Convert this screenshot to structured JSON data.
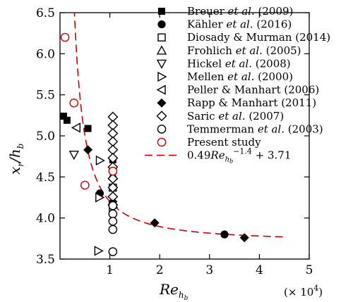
{
  "chart_data": {
    "type": "scatter",
    "xlabel": "Re",
    "xlabel_sub": "h",
    "xlabel_subsub": "b",
    "ylabel": "x",
    "ylabel_sub": "r",
    "ylabel_div": "/h",
    "ylabel_div_sub": "b",
    "x_scale_note": "(× 10",
    "x_scale_exp": "4",
    "x_scale_close": ")",
    "xlim": [
      0,
      5
    ],
    "ylim": [
      3.5,
      6.5
    ],
    "xticks": [
      1,
      2,
      3,
      4,
      5
    ],
    "xtick_labels": [
      "1",
      "2",
      "3",
      "4",
      "5"
    ],
    "yticks": [
      3.5,
      4.0,
      4.5,
      5.0,
      5.5,
      6.0,
      6.5
    ],
    "ytick_labels": [
      "3.5",
      "4.0",
      "4.5",
      "5.0",
      "5.5",
      "6.0",
      "6.5"
    ],
    "grid": false,
    "legend_position": "top-right",
    "series": [
      {
        "name": "Breuer et al. (2009)",
        "name_parts": [
          "Breuer ",
          "et al",
          ". (2009)"
        ],
        "marker": "square-filled",
        "color": "#000000",
        "points": [
          [
            0.07,
            5.24
          ],
          [
            0.14,
            5.19
          ],
          [
            0.56,
            5.09
          ],
          [
            1.06,
            4.71
          ]
        ]
      },
      {
        "name": "Kähler et al. (2016)",
        "name_parts": [
          "Kähler ",
          "et al",
          ". (2016)"
        ],
        "marker": "circle-filled",
        "color": "#000000",
        "points": [
          [
            0.8,
            4.3
          ],
          [
            1.06,
            4.61
          ],
          [
            3.3,
            3.8
          ]
        ]
      },
      {
        "name": "Diosady & Murman (2014)",
        "name_parts": [
          "Diosady & Murman (2014)",
          "",
          ""
        ],
        "marker": "square-open",
        "color": "#000000",
        "points": [
          [
            1.06,
            4.37
          ]
        ]
      },
      {
        "name": "Frohlich et al. (2005)",
        "name_parts": [
          "Frohlich ",
          "et al",
          ". (2005)"
        ],
        "marker": "triangle-up-open",
        "color": "#000000",
        "points": [
          [
            1.06,
            4.52
          ]
        ]
      },
      {
        "name": "Hickel et al. (2008)",
        "name_parts": [
          "Hickel ",
          "et al",
          ". (2008)"
        ],
        "marker": "triangle-down-open",
        "color": "#000000",
        "points": [
          [
            0.28,
            4.77
          ]
        ]
      },
      {
        "name": "Mellen et al. (2000)",
        "name_parts": [
          "Mellen ",
          "et al",
          ". (2000)"
        ],
        "marker": "triangle-right-open",
        "color": "#000000",
        "points": [
          [
            0.77,
            3.6
          ],
          [
            0.79,
            4.25
          ],
          [
            0.8,
            4.7
          ],
          [
            1.06,
            4.13
          ]
        ]
      },
      {
        "name": "Peller & Manhart (2006)",
        "name_parts": [
          "Peller & Manhart (2006)",
          "",
          ""
        ],
        "marker": "triangle-left-open",
        "color": "#000000",
        "points": [
          [
            0.33,
            5.1
          ]
        ]
      },
      {
        "name": "Rapp & Manhart (2011)",
        "name_parts": [
          "Rapp & Manhart (2011)",
          "",
          ""
        ],
        "marker": "diamond-filled",
        "color": "#000000",
        "points": [
          [
            0.56,
            4.83
          ],
          [
            1.06,
            4.2
          ],
          [
            1.9,
            3.94
          ],
          [
            3.7,
            3.76
          ]
        ]
      },
      {
        "name": "Saric et al. (2007)",
        "name_parts": [
          "Saric ",
          "et al",
          ". (2007)"
        ],
        "marker": "diamond-open",
        "color": "#000000",
        "points": [
          [
            1.06,
            5.23
          ],
          [
            1.06,
            5.13
          ],
          [
            1.06,
            5.03
          ],
          [
            1.06,
            4.93
          ],
          [
            1.06,
            4.83
          ],
          [
            1.06,
            4.73
          ],
          [
            1.06,
            4.62
          ],
          [
            1.06,
            4.48
          ],
          [
            1.06,
            4.37
          ],
          [
            1.06,
            4.26
          ],
          [
            1.06,
            4.16
          ]
        ]
      },
      {
        "name": "Temmerman et al. (2003)",
        "name_parts": [
          "Temmerman ",
          "et al",
          ". (2003)"
        ],
        "marker": "circle-open",
        "color": "#000000",
        "points": [
          [
            1.06,
            4.57
          ],
          [
            1.06,
            4.15
          ],
          [
            1.06,
            4.05
          ],
          [
            1.06,
            3.96
          ],
          [
            1.06,
            3.86
          ],
          [
            1.06,
            3.59
          ]
        ]
      },
      {
        "name": "Present study",
        "name_parts": [
          "Present study",
          "",
          ""
        ],
        "marker": "circle-open",
        "color": "#cc0000",
        "points": [
          [
            0.1,
            6.2
          ],
          [
            0.28,
            5.4
          ],
          [
            0.5,
            4.4
          ],
          [
            1.06,
            4.57
          ]
        ]
      }
    ],
    "fit_curve": {
      "equation": "0.49Re_hb^-1.4 + 3.71",
      "coef_text": "0.49",
      "var_text": "Re",
      "var_sub": "h",
      "var_subsub": "b",
      "exp_text": "−1.4",
      "const_text": " + 3.71",
      "color": "#cc0000",
      "a": 0.49,
      "b": -1.4,
      "c": 3.71,
      "x_range": [
        0.1,
        4.55
      ]
    }
  }
}
